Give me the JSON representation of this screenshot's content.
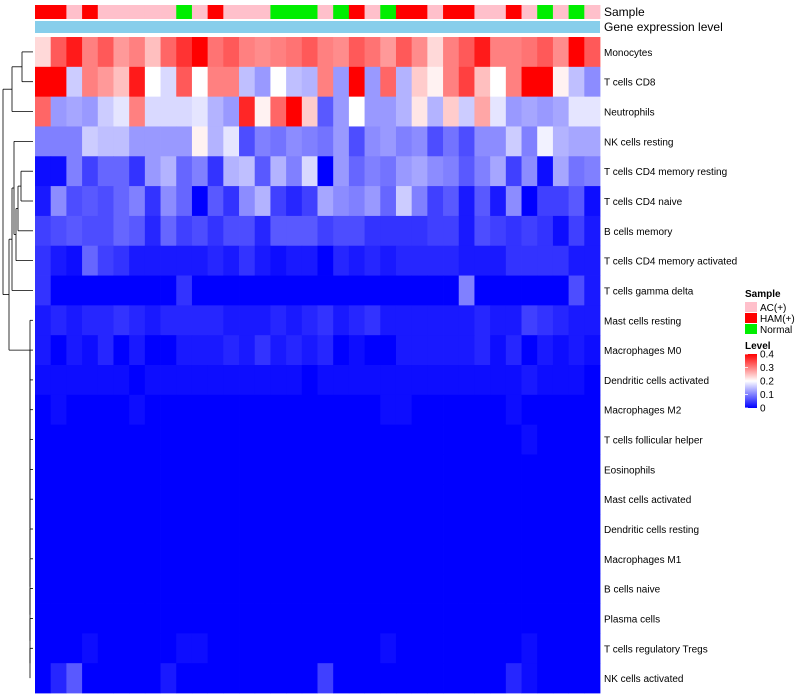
{
  "chart_data": {
    "type": "heatmap",
    "title": "",
    "annotation_tracks": [
      "Sample",
      "Gene expression level"
    ],
    "rows": [
      "Monocytes",
      "T cells CD8",
      "Neutrophils",
      "NK cells resting",
      "T cells CD4 memory resting",
      "T cells CD4 naive",
      "B cells memory",
      "T cells CD4 memory activated",
      "T cells gamma delta",
      "Mast cells resting",
      "Macrophages M0",
      "Dendritic cells activated",
      "Macrophages M2",
      "T cells follicular helper",
      "Eosinophils",
      "Mast cells activated",
      "Dendritic cells resting",
      "Macrophages M1",
      "B cells naive",
      "Plasma cells",
      "T cells regulatory  Tregs",
      "NK cells activated"
    ],
    "samples": [
      "HAM(+)",
      "HAM(+)",
      "AC(+)",
      "HAM(+)",
      "AC(+)",
      "AC(+)",
      "AC(+)",
      "AC(+)",
      "AC(+)",
      "Normal",
      "AC(+)",
      "HAM(+)",
      "AC(+)",
      "AC(+)",
      "AC(+)",
      "Normal",
      "Normal",
      "Normal",
      "AC(+)",
      "Normal",
      "HAM(+)",
      "AC(+)",
      "Normal",
      "HAM(+)",
      "HAM(+)",
      "AC(+)",
      "HAM(+)",
      "HAM(+)",
      "AC(+)",
      "AC(+)",
      "HAM(+)",
      "AC(+)",
      "Normal",
      "AC(+)",
      "Normal",
      "AC(+)"
    ],
    "values": [
      [
        0.23,
        0.33,
        0.38,
        0.3,
        0.33,
        0.28,
        0.3,
        0.25,
        0.32,
        0.36,
        0.4,
        0.31,
        0.33,
        0.3,
        0.29,
        0.3,
        0.31,
        0.33,
        0.3,
        0.29,
        0.33,
        0.31,
        0.28,
        0.33,
        0.29,
        0.23,
        0.3,
        0.33,
        0.38,
        0.3,
        0.3,
        0.31,
        0.33,
        0.29,
        0.4,
        0.33
      ],
      [
        0.4,
        0.4,
        0.16,
        0.3,
        0.28,
        0.25,
        0.38,
        0.2,
        0.17,
        0.33,
        0.2,
        0.3,
        0.3,
        0.15,
        0.12,
        0.2,
        0.15,
        0.14,
        0.3,
        0.12,
        0.4,
        0.12,
        0.32,
        0.14,
        0.24,
        0.21,
        0.3,
        0.35,
        0.25,
        0.2,
        0.3,
        0.4,
        0.4,
        0.21,
        0.15,
        0.11
      ],
      [
        0.32,
        0.12,
        0.13,
        0.12,
        0.16,
        0.18,
        0.3,
        0.17,
        0.17,
        0.17,
        0.18,
        0.14,
        0.12,
        0.37,
        0.21,
        0.32,
        0.4,
        0.24,
        0.07,
        0.12,
        0.2,
        0.12,
        0.12,
        0.14,
        0.22,
        0.14,
        0.24,
        0.16,
        0.27,
        0.18,
        0.12,
        0.13,
        0.12,
        0.13,
        0.18,
        0.18
      ],
      [
        0.1,
        0.1,
        0.1,
        0.16,
        0.15,
        0.15,
        0.12,
        0.12,
        0.12,
        0.12,
        0.21,
        0.14,
        0.18,
        0.06,
        0.1,
        0.09,
        0.11,
        0.1,
        0.09,
        0.12,
        0.06,
        0.11,
        0.12,
        0.1,
        0.11,
        0.06,
        0.09,
        0.06,
        0.11,
        0.11,
        0.16,
        0.1,
        0.19,
        0.14,
        0.13,
        0.13
      ],
      [
        0.01,
        0.01,
        0.1,
        0.05,
        0.08,
        0.08,
        0.04,
        0.12,
        0.14,
        0.08,
        0.1,
        0.04,
        0.14,
        0.15,
        0.07,
        0.14,
        0.1,
        0.17,
        0.0,
        0.12,
        0.08,
        0.1,
        0.09,
        0.12,
        0.13,
        0.11,
        0.1,
        0.07,
        0.1,
        0.13,
        0.05,
        0.11,
        0.01,
        0.13,
        0.09,
        0.1
      ],
      [
        0.02,
        0.11,
        0.06,
        0.07,
        0.06,
        0.08,
        0.1,
        0.04,
        0.11,
        0.08,
        0.0,
        0.07,
        0.04,
        0.11,
        0.14,
        0.05,
        0.03,
        0.05,
        0.13,
        0.11,
        0.1,
        0.12,
        0.08,
        0.16,
        0.1,
        0.05,
        0.07,
        0.02,
        0.07,
        0.02,
        0.11,
        0.0,
        0.05,
        0.05,
        0.07,
        0.01
      ],
      [
        0.05,
        0.06,
        0.07,
        0.06,
        0.06,
        0.08,
        0.07,
        0.03,
        0.08,
        0.05,
        0.06,
        0.04,
        0.06,
        0.06,
        0.03,
        0.07,
        0.07,
        0.07,
        0.05,
        0.06,
        0.06,
        0.04,
        0.04,
        0.04,
        0.04,
        0.05,
        0.05,
        0.02,
        0.06,
        0.05,
        0.04,
        0.05,
        0.04,
        0.01,
        0.05,
        0.02
      ],
      [
        0.04,
        0.02,
        0.01,
        0.08,
        0.05,
        0.04,
        0.02,
        0.02,
        0.02,
        0.02,
        0.02,
        0.03,
        0.02,
        0.04,
        0.02,
        0.01,
        0.02,
        0.02,
        0.0,
        0.03,
        0.02,
        0.03,
        0.02,
        0.03,
        0.03,
        0.03,
        0.03,
        0.02,
        0.02,
        0.02,
        0.04,
        0.04,
        0.04,
        0.04,
        0.02,
        0.02
      ],
      [
        0.04,
        0.0,
        0.0,
        0.0,
        0.0,
        0.0,
        0.0,
        0.0,
        0.0,
        0.04,
        0.0,
        0.0,
        0.0,
        0.0,
        0.0,
        0.0,
        0.0,
        0.0,
        0.0,
        0.0,
        0.0,
        0.0,
        0.0,
        0.0,
        0.0,
        0.0,
        0.0,
        0.1,
        0.0,
        0.0,
        0.0,
        0.0,
        0.0,
        0.0,
        0.06,
        0.02
      ],
      [
        0.02,
        0.03,
        0.02,
        0.03,
        0.03,
        0.04,
        0.03,
        0.02,
        0.03,
        0.03,
        0.03,
        0.03,
        0.02,
        0.02,
        0.02,
        0.03,
        0.02,
        0.03,
        0.04,
        0.02,
        0.03,
        0.04,
        0.02,
        0.02,
        0.02,
        0.02,
        0.02,
        0.02,
        0.03,
        0.02,
        0.02,
        0.05,
        0.04,
        0.03,
        0.02,
        0.02
      ],
      [
        0.02,
        0.0,
        0.02,
        0.01,
        0.03,
        0.0,
        0.02,
        0.0,
        0.0,
        0.02,
        0.02,
        0.02,
        0.03,
        0.02,
        0.04,
        0.02,
        0.03,
        0.02,
        0.03,
        0.0,
        0.01,
        0.0,
        0.0,
        0.02,
        0.02,
        0.02,
        0.02,
        0.02,
        0.03,
        0.01,
        0.03,
        0.0,
        0.02,
        0.01,
        0.02,
        0.01
      ],
      [
        0.01,
        0.01,
        0.01,
        0.01,
        0.01,
        0.01,
        0.0,
        0.01,
        0.01,
        0.01,
        0.01,
        0.01,
        0.01,
        0.01,
        0.01,
        0.01,
        0.01,
        0.0,
        0.01,
        0.01,
        0.01,
        0.01,
        0.01,
        0.01,
        0.01,
        0.01,
        0.01,
        0.01,
        0.01,
        0.01,
        0.01,
        0.02,
        0.01,
        0.01,
        0.01,
        0.0
      ],
      [
        0.0,
        0.01,
        0.0,
        0.0,
        0.0,
        0.0,
        0.01,
        0.0,
        0.0,
        0.0,
        0.0,
        0.0,
        0.0,
        0.0,
        0.0,
        0.0,
        0.0,
        0.0,
        0.0,
        0.0,
        0.0,
        0.0,
        0.01,
        0.01,
        0.0,
        0.0,
        0.0,
        0.0,
        0.0,
        0.0,
        0.01,
        0.0,
        0.0,
        0.0,
        0.0,
        0.0
      ],
      [
        0.0,
        0.0,
        0.0,
        0.0,
        0.0,
        0.0,
        0.0,
        0.0,
        0.0,
        0.0,
        0.0,
        0.0,
        0.0,
        0.0,
        0.0,
        0.0,
        0.0,
        0.0,
        0.0,
        0.0,
        0.0,
        0.0,
        0.0,
        0.0,
        0.0,
        0.0,
        0.0,
        0.0,
        0.0,
        0.0,
        0.0,
        0.01,
        0.0,
        0.0,
        0.0,
        0.0
      ],
      [
        0.0,
        0.0,
        0.0,
        0.0,
        0.0,
        0.0,
        0.0,
        0.0,
        0.0,
        0.0,
        0.0,
        0.0,
        0.0,
        0.0,
        0.0,
        0.0,
        0.0,
        0.0,
        0.0,
        0.0,
        0.0,
        0.0,
        0.0,
        0.0,
        0.0,
        0.0,
        0.0,
        0.0,
        0.0,
        0.0,
        0.0,
        0.0,
        0.0,
        0.0,
        0.0,
        0.0
      ],
      [
        0.0,
        0.0,
        0.0,
        0.0,
        0.0,
        0.0,
        0.0,
        0.0,
        0.0,
        0.0,
        0.0,
        0.0,
        0.0,
        0.0,
        0.0,
        0.0,
        0.0,
        0.0,
        0.0,
        0.0,
        0.0,
        0.0,
        0.0,
        0.0,
        0.0,
        0.0,
        0.0,
        0.0,
        0.0,
        0.0,
        0.0,
        0.0,
        0.0,
        0.0,
        0.0,
        0.0
      ],
      [
        0.0,
        0.0,
        0.0,
        0.0,
        0.0,
        0.0,
        0.0,
        0.0,
        0.0,
        0.0,
        0.0,
        0.0,
        0.0,
        0.0,
        0.0,
        0.0,
        0.0,
        0.0,
        0.0,
        0.0,
        0.0,
        0.0,
        0.0,
        0.0,
        0.0,
        0.0,
        0.0,
        0.0,
        0.0,
        0.0,
        0.0,
        0.0,
        0.0,
        0.0,
        0.0,
        0.0
      ],
      [
        0.0,
        0.0,
        0.0,
        0.0,
        0.0,
        0.0,
        0.0,
        0.0,
        0.0,
        0.0,
        0.0,
        0.0,
        0.0,
        0.0,
        0.0,
        0.0,
        0.0,
        0.0,
        0.0,
        0.0,
        0.0,
        0.0,
        0.0,
        0.0,
        0.0,
        0.0,
        0.0,
        0.0,
        0.0,
        0.0,
        0.0,
        0.0,
        0.0,
        0.0,
        0.0,
        0.0
      ],
      [
        0.0,
        0.0,
        0.0,
        0.0,
        0.0,
        0.0,
        0.0,
        0.0,
        0.0,
        0.0,
        0.0,
        0.0,
        0.0,
        0.0,
        0.0,
        0.0,
        0.0,
        0.0,
        0.0,
        0.0,
        0.0,
        0.0,
        0.0,
        0.0,
        0.0,
        0.0,
        0.0,
        0.0,
        0.0,
        0.0,
        0.0,
        0.0,
        0.0,
        0.0,
        0.0,
        0.0
      ],
      [
        0.0,
        0.0,
        0.0,
        0.0,
        0.0,
        0.0,
        0.0,
        0.0,
        0.0,
        0.0,
        0.0,
        0.0,
        0.0,
        0.0,
        0.0,
        0.0,
        0.0,
        0.0,
        0.0,
        0.0,
        0.0,
        0.0,
        0.0,
        0.0,
        0.0,
        0.0,
        0.0,
        0.0,
        0.0,
        0.0,
        0.0,
        0.0,
        0.0,
        0.0,
        0.0,
        0.0
      ],
      [
        0.0,
        0.0,
        0.0,
        0.01,
        0.0,
        0.0,
        0.0,
        0.0,
        0.0,
        0.01,
        0.01,
        0.0,
        0.0,
        0.0,
        0.0,
        0.0,
        0.0,
        0.0,
        0.0,
        0.0,
        0.0,
        0.0,
        0.01,
        0.0,
        0.0,
        0.0,
        0.0,
        0.0,
        0.0,
        0.0,
        0.0,
        0.01,
        0.0,
        0.0,
        0.0,
        0.0
      ],
      [
        0.0,
        0.03,
        0.07,
        0.0,
        0.0,
        0.0,
        0.0,
        0.0,
        0.02,
        0.0,
        0.0,
        0.0,
        0.0,
        0.0,
        0.0,
        0.0,
        0.0,
        0.0,
        0.05,
        0.0,
        0.0,
        0.0,
        0.0,
        0.0,
        0.0,
        0.0,
        0.0,
        0.0,
        0.0,
        0.0,
        0.03,
        0.01,
        0.0,
        0.0,
        0.0,
        0.0
      ]
    ],
    "row_dendrogram": true,
    "legends": {
      "sample": {
        "title": "Sample",
        "items": [
          {
            "label": "AC(+)",
            "color": "#FFC0CB"
          },
          {
            "label": "HAM(+)",
            "color": "#FF0000"
          },
          {
            "label": "Normal",
            "color": "#00EE00"
          }
        ]
      },
      "level": {
        "title": "Level",
        "ticks": [
          "0.4",
          "0.3",
          "0.2",
          "0.1",
          "0"
        ],
        "range": [
          0,
          0.4
        ],
        "colors": [
          "#0000FF",
          "#FFFFFF",
          "#FF0000"
        ]
      }
    },
    "gene_track_color": "#87CEEB"
  }
}
